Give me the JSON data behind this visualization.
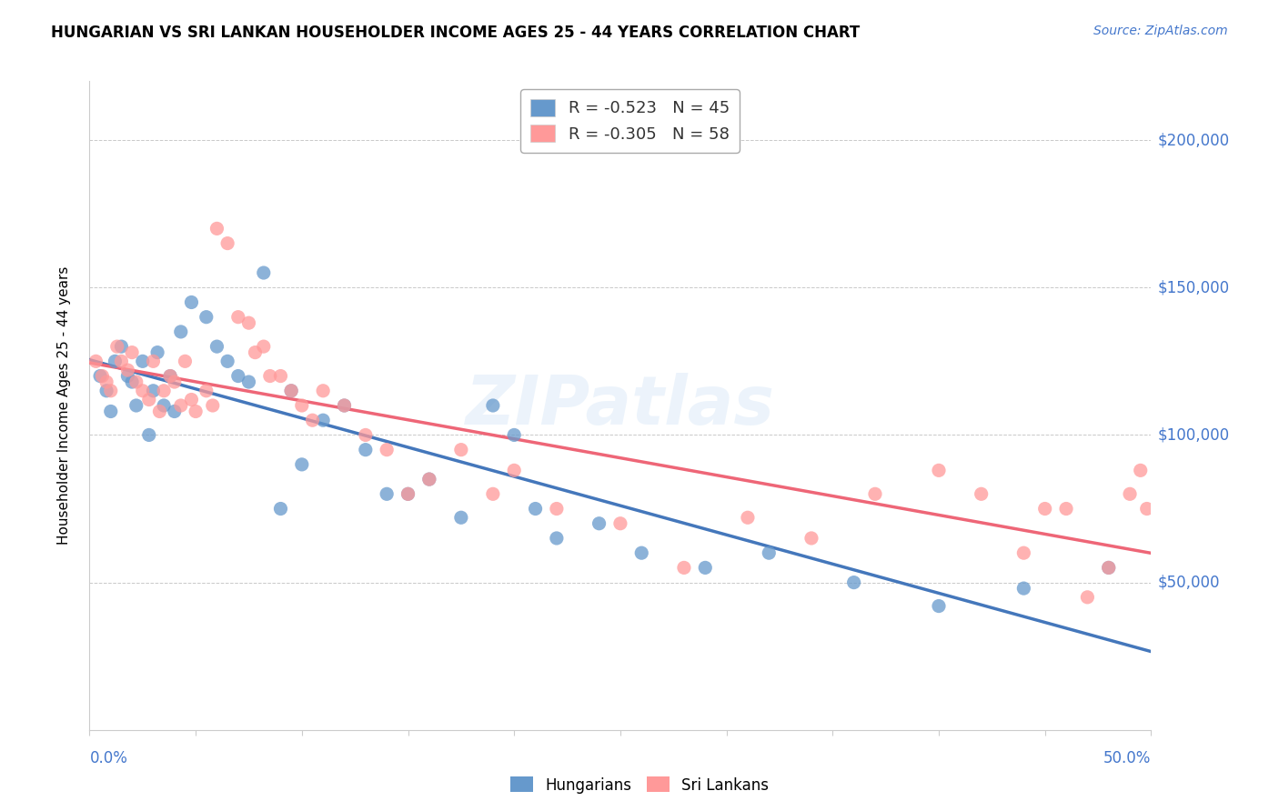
{
  "title": "HUNGARIAN VS SRI LANKAN HOUSEHOLDER INCOME AGES 25 - 44 YEARS CORRELATION CHART",
  "source_text": "Source: ZipAtlas.com",
  "ylabel": "Householder Income Ages 25 - 44 years",
  "legend_blue": "R = -0.523   N = 45",
  "legend_pink": "R = -0.305   N = 58",
  "legend_label_blue": "Hungarians",
  "legend_label_pink": "Sri Lankans",
  "watermark": "ZIPatlas",
  "blue_color": "#6699cc",
  "pink_color": "#ff9999",
  "line_blue": "#4477bb",
  "line_pink": "#ee6677",
  "text_blue": "#4477cc",
  "ylim": [
    0,
    220000
  ],
  "xlim": [
    0,
    0.5
  ],
  "yticks": [
    0,
    50000,
    100000,
    150000,
    200000
  ],
  "ytick_labels": [
    "",
    "$50,000",
    "$100,000",
    "$150,000",
    "$200,000"
  ],
  "hungarians_x": [
    0.005,
    0.008,
    0.01,
    0.012,
    0.015,
    0.018,
    0.02,
    0.022,
    0.025,
    0.028,
    0.03,
    0.032,
    0.035,
    0.038,
    0.04,
    0.043,
    0.048,
    0.055,
    0.06,
    0.065,
    0.07,
    0.075,
    0.082,
    0.09,
    0.095,
    0.1,
    0.11,
    0.12,
    0.13,
    0.14,
    0.15,
    0.16,
    0.175,
    0.19,
    0.2,
    0.21,
    0.22,
    0.24,
    0.26,
    0.29,
    0.32,
    0.36,
    0.4,
    0.44,
    0.48
  ],
  "hungarians_y": [
    120000,
    115000,
    108000,
    125000,
    130000,
    120000,
    118000,
    110000,
    125000,
    100000,
    115000,
    128000,
    110000,
    120000,
    108000,
    135000,
    145000,
    140000,
    130000,
    125000,
    120000,
    118000,
    155000,
    75000,
    115000,
    90000,
    105000,
    110000,
    95000,
    80000,
    80000,
    85000,
    72000,
    110000,
    100000,
    75000,
    65000,
    70000,
    60000,
    55000,
    60000,
    50000,
    42000,
    48000,
    55000
  ],
  "srilankans_x": [
    0.003,
    0.006,
    0.008,
    0.01,
    0.013,
    0.015,
    0.018,
    0.02,
    0.022,
    0.025,
    0.028,
    0.03,
    0.033,
    0.035,
    0.038,
    0.04,
    0.043,
    0.045,
    0.048,
    0.05,
    0.055,
    0.058,
    0.06,
    0.065,
    0.07,
    0.075,
    0.078,
    0.082,
    0.085,
    0.09,
    0.095,
    0.1,
    0.105,
    0.11,
    0.12,
    0.13,
    0.14,
    0.15,
    0.16,
    0.175,
    0.19,
    0.2,
    0.22,
    0.25,
    0.28,
    0.31,
    0.34,
    0.37,
    0.4,
    0.42,
    0.44,
    0.45,
    0.46,
    0.47,
    0.48,
    0.49,
    0.495,
    0.498
  ],
  "srilankans_y": [
    125000,
    120000,
    118000,
    115000,
    130000,
    125000,
    122000,
    128000,
    118000,
    115000,
    112000,
    125000,
    108000,
    115000,
    120000,
    118000,
    110000,
    125000,
    112000,
    108000,
    115000,
    110000,
    170000,
    165000,
    140000,
    138000,
    128000,
    130000,
    120000,
    120000,
    115000,
    110000,
    105000,
    115000,
    110000,
    100000,
    95000,
    80000,
    85000,
    95000,
    80000,
    88000,
    75000,
    70000,
    55000,
    72000,
    65000,
    80000,
    88000,
    80000,
    60000,
    75000,
    75000,
    45000,
    55000,
    80000,
    88000,
    75000
  ]
}
